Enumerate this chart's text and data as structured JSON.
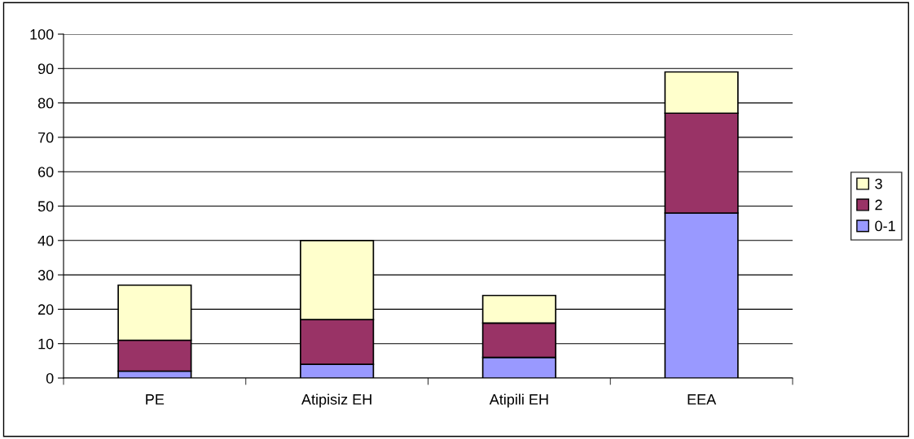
{
  "chart_data": {
    "type": "bar",
    "stacked": true,
    "categories": [
      "PE",
      "Atipisiz EH",
      "Atipili EH",
      "EEA"
    ],
    "series": [
      {
        "name": "0-1",
        "color": "#9999ff",
        "values": [
          2,
          4,
          6,
          48
        ]
      },
      {
        "name": "2",
        "color": "#993366",
        "values": [
          9,
          13,
          10,
          29
        ]
      },
      {
        "name": "3",
        "color": "#ffffcc",
        "values": [
          16,
          23,
          8,
          12
        ]
      }
    ],
    "ylim": [
      0,
      100
    ],
    "yticks": [
      0,
      10,
      20,
      30,
      40,
      50,
      60,
      70,
      80,
      90,
      100
    ],
    "grid": "y",
    "legend": "right"
  }
}
